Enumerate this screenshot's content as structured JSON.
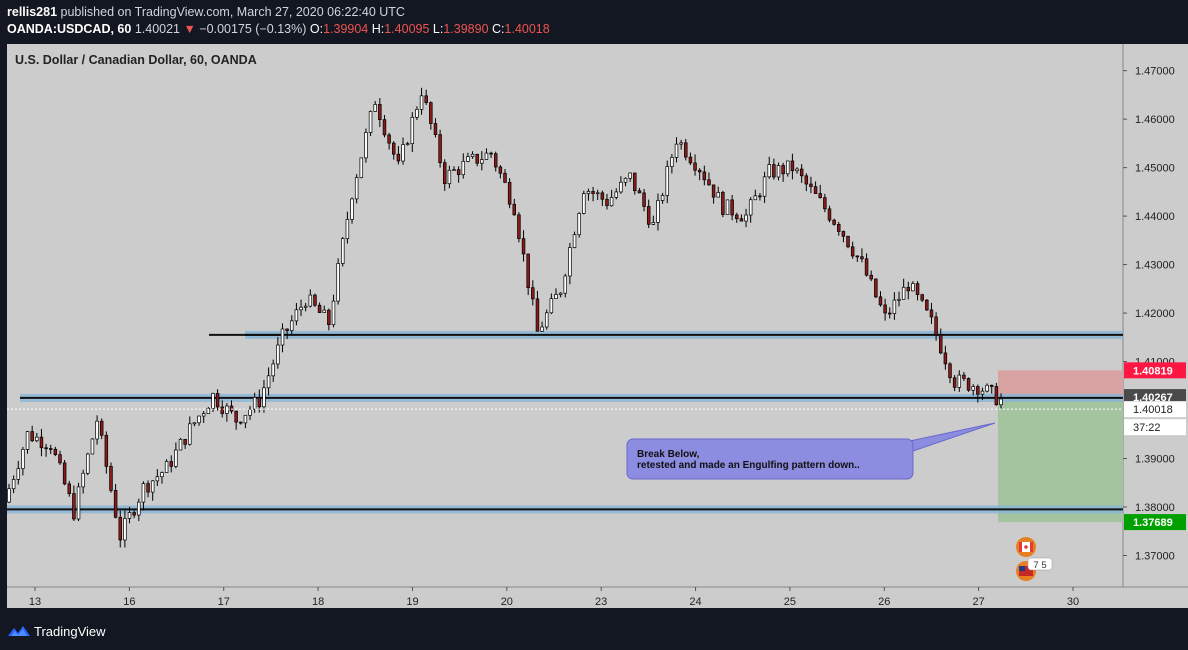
{
  "header": {
    "publisher": "rellis281",
    "published_text": " published on TradingView.com, March 27, 2020 06:22:40 UTC",
    "symbol": "OANDA:USDCAD, 60",
    "last": "1.40021",
    "change_arrow": "▼",
    "change": "−0.00175 (−0.13%)",
    "o_label": "O:",
    "o_value": "1.39904",
    "h_label": "H:",
    "h_value": "1.40095",
    "l_label": "L:",
    "l_value": "1.39890",
    "c_label": "C:",
    "c_value": "1.40018"
  },
  "footer": {
    "brand": "TradingView",
    "logo_icon": "tradingview-logo-icon"
  },
  "colors": {
    "background": "#cccccc",
    "frame": "#131722",
    "candle_up": "#ffffff",
    "candle_down": "#8b1a1a",
    "wick": "#000000",
    "level_band": "#8ab6d6",
    "target_zone": "#a4c4a0",
    "stop_zone": "#d9a3a3",
    "stop_tag": "#ff1744",
    "target_tag": "#00a000",
    "entry_tag": "#4a4a4a",
    "callout": "#8c8ce0"
  },
  "chart_data": {
    "type": "candlestick",
    "title": "U.S. Dollar / Canadian Dollar, 60, OANDA",
    "ylim": [
      1.3635,
      1.4755
    ],
    "y_ticks": [
      "1.47000",
      "1.46000",
      "1.45000",
      "1.44000",
      "1.43000",
      "1.42000",
      "1.41000",
      "1.39000",
      "1.38000",
      "1.37000"
    ],
    "x_ticks": [
      "13",
      "16",
      "17",
      "18",
      "19",
      "20",
      "23",
      "24",
      "25",
      "26",
      "27",
      "30"
    ],
    "grid": false,
    "price_path": [
      [
        "13",
        1.381
      ],
      [
        "13",
        1.395
      ],
      [
        "13",
        1.393
      ],
      [
        "16",
        1.379
      ],
      [
        "16",
        1.398
      ],
      [
        "16",
        1.374
      ],
      [
        "16",
        1.384
      ],
      [
        "16",
        1.388
      ],
      [
        "17",
        1.396
      ],
      [
        "17",
        1.403
      ],
      [
        "17",
        1.398
      ],
      [
        "17",
        1.402
      ],
      [
        "18",
        1.415
      ],
      [
        "18",
        1.423
      ],
      [
        "18",
        1.418
      ],
      [
        "19",
        1.445
      ],
      [
        "19",
        1.464
      ],
      [
        "19",
        1.45
      ],
      [
        "19",
        1.466
      ],
      [
        "19",
        1.448
      ],
      [
        "20",
        1.451
      ],
      [
        "20",
        1.453
      ],
      [
        "20",
        1.442
      ],
      [
        "20",
        1.416
      ],
      [
        "20",
        1.425
      ],
      [
        "23",
        1.446
      ],
      [
        "23",
        1.443
      ],
      [
        "23",
        1.448
      ],
      [
        "23",
        1.438
      ],
      [
        "23",
        1.456
      ],
      [
        "24",
        1.45
      ],
      [
        "24",
        1.442
      ],
      [
        "24",
        1.44
      ],
      [
        "24",
        1.449
      ],
      [
        "25",
        1.45
      ],
      [
        "25",
        1.444
      ],
      [
        "25",
        1.438
      ],
      [
        "25",
        1.43
      ],
      [
        "26",
        1.419
      ],
      [
        "26",
        1.426
      ],
      [
        "26",
        1.418
      ],
      [
        "26",
        1.406
      ],
      [
        "27",
        1.405
      ],
      [
        "27",
        1.402
      ]
    ],
    "horizontal_levels": [
      {
        "price": 1.4155,
        "style": "band"
      },
      {
        "price": 1.4025,
        "style": "band"
      },
      {
        "price": 1.3795,
        "style": "band"
      }
    ],
    "position": {
      "type": "short",
      "stop": "1.40819",
      "entry": "1.40267",
      "target": "1.37689"
    },
    "price_labels": [
      {
        "text": "1.40819",
        "kind": "stop"
      },
      {
        "text": "1.40267",
        "kind": "entry"
      },
      {
        "text": "1.40018",
        "kind": "last"
      },
      {
        "text": "37:22",
        "kind": "timer"
      },
      {
        "text": "1.37689",
        "kind": "target"
      }
    ],
    "annotation": {
      "line1": "Break Below,",
      "line2": "retested and made an Engulfing pattern down.."
    },
    "event_badge": "7 5"
  }
}
